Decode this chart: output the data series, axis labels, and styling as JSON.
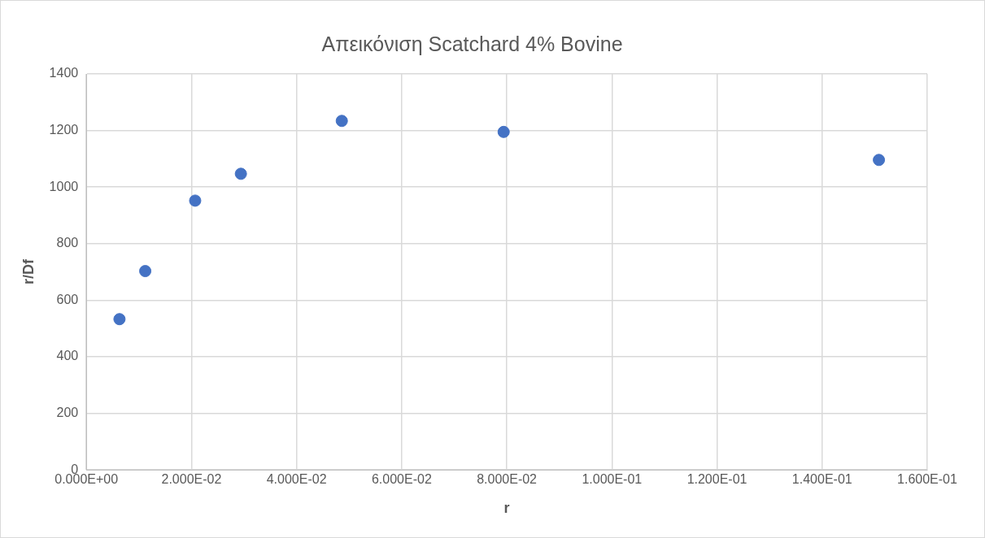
{
  "chart_data": {
    "type": "scatter",
    "title": "Απεικόνιση Scatchard 4% Bovine",
    "xlabel": "r",
    "ylabel": "r/Df",
    "x": [
      0.0063,
      0.0112,
      0.0207,
      0.0294,
      0.0486,
      0.0794,
      0.1508
    ],
    "series": [
      {
        "color": "#4472c4",
        "values": [
          533,
          703,
          952,
          1047,
          1234,
          1195,
          1096
        ]
      }
    ],
    "xlim": [
      0,
      0.16
    ],
    "xticks": [
      {
        "value": 0,
        "label": "0.000E+00"
      },
      {
        "value": 0.02,
        "label": "2.000E-02"
      },
      {
        "value": 0.04,
        "label": "4.000E-02"
      },
      {
        "value": 0.06,
        "label": "6.000E-02"
      },
      {
        "value": 0.08,
        "label": "8.000E-02"
      },
      {
        "value": 0.1,
        "label": "1.000E-01"
      },
      {
        "value": 0.12,
        "label": "1.200E-01"
      },
      {
        "value": 0.14,
        "label": "1.400E-01"
      },
      {
        "value": 0.16,
        "label": "1.600E-01"
      }
    ],
    "ylim": [
      0,
      1400
    ],
    "yticks": [
      0,
      200,
      400,
      600,
      800,
      1000,
      1200,
      1400
    ],
    "grid": true,
    "legend": false,
    "marker": "circle"
  }
}
